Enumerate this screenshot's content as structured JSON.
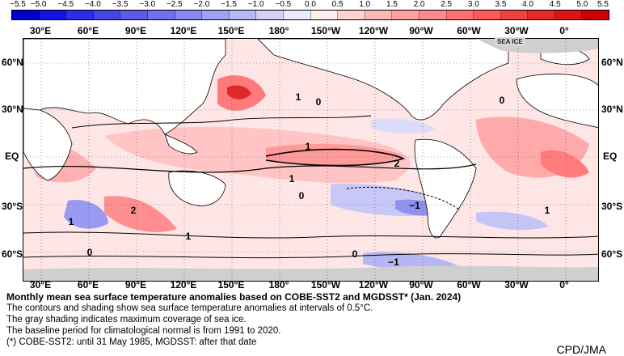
{
  "legend": {
    "ticks": [
      "−5.5",
      "−5.0",
      "−4.5",
      "−4.0",
      "−3.5",
      "−3.0",
      "−2.5",
      "−2.0",
      "−1.5",
      "−1.0",
      "−0.5",
      "0.0",
      "0.5",
      "1.0",
      "1.5",
      "2.0",
      "2.5",
      "3.0",
      "3.5",
      "4.0",
      "4.5",
      "5.0",
      "5.5"
    ],
    "colors": [
      "#0000c8",
      "#1414e6",
      "#2d2de6",
      "#4646e6",
      "#5a5ae6",
      "#7070ec",
      "#8888f0",
      "#a0a0f4",
      "#b8b8f6",
      "#d2d2f8",
      "#eaeaff",
      "#ffecec",
      "#ffd2d2",
      "#ffb8b8",
      "#ffa0a0",
      "#ff8888",
      "#ff7070",
      "#ff5a5a",
      "#f04040",
      "#e62828",
      "#dc1414",
      "#d00000"
    ]
  },
  "lon_labels": [
    "30°E",
    "60°E",
    "90°E",
    "120°E",
    "150°E",
    "180°",
    "150°W",
    "120°W",
    "90°W",
    "60°W",
    "30°W",
    "0°"
  ],
  "lat_labels": [
    "60°N",
    "30°N",
    "EQ",
    "30°S",
    "60°S"
  ],
  "contour_labels": [
    "1",
    "0",
    "1",
    "2",
    "1",
    "0",
    "−1",
    "1",
    "2",
    "1",
    "0",
    "0",
    "−1",
    "0",
    "1"
  ],
  "sea_ice_label": "SEA ICE",
  "caption": {
    "title": "Monthly mean sea surface temperature anomalies based on COBE-SST2 and MGDSST* (Jan. 2024)",
    "lines": [
      "The contours and shading show sea surface temperature anomalies at intervals of 0.5°C.",
      "The gray shading indicates maximum coverage of sea ice.",
      "The baseline period for climatological normal is from 1991 to 2020.",
      "(*) COBE-SST2: until 31 May 1985, MGDSST: after that date"
    ]
  },
  "credit": "CPD/JMA"
}
